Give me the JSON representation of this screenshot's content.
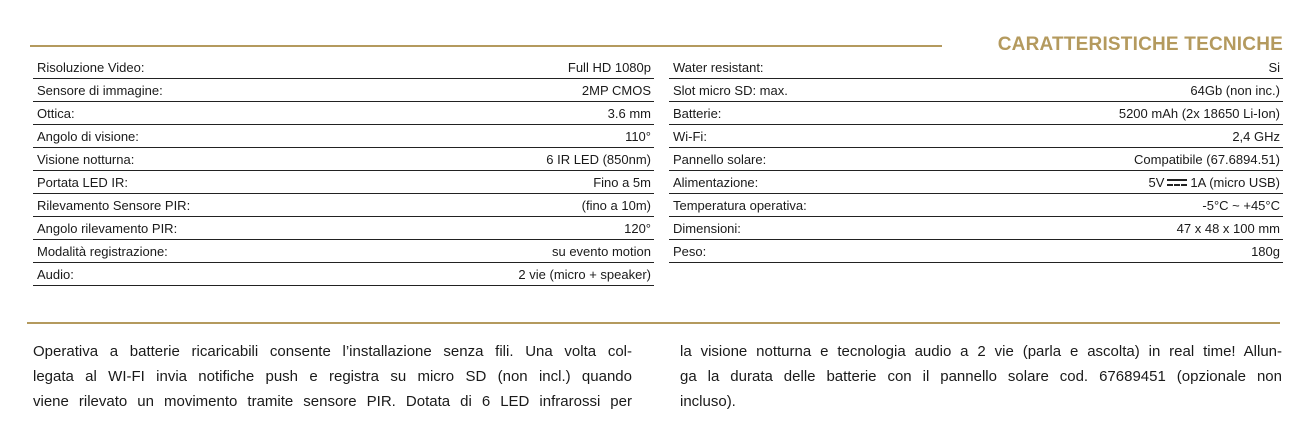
{
  "title": "CARATTERISTICHE TECNICHE",
  "accent_color": "#b49a5e",
  "left_specs": [
    {
      "label": "Risoluzione Video:",
      "value": "Full HD 1080p"
    },
    {
      "label": "Sensore di immagine:",
      "value": "2MP CMOS"
    },
    {
      "label": "Ottica:",
      "value": "3.6 mm"
    },
    {
      "label": "Angolo di visione:",
      "value": "110°"
    },
    {
      "label": "Visione notturna:",
      "value": "6 IR LED (850nm)"
    },
    {
      "label": "Portata LED IR:",
      "value": "Fino a 5m"
    },
    {
      "label": "Rilevamento Sensore PIR:",
      "value": "(fino a 10m)"
    },
    {
      "label": "Angolo rilevamento PIR:",
      "value": "120°"
    },
    {
      "label": "Modalità registrazione:",
      "value": "su evento motion"
    },
    {
      "label": "Audio:",
      "value": "2 vie (micro + speaker)"
    }
  ],
  "right_specs": [
    {
      "label": "Water resistant:",
      "value": "Si"
    },
    {
      "label": "Slot micro SD: max.",
      "value": "64Gb (non inc.)"
    },
    {
      "label": "Batterie:",
      "value": "5200 mAh (2x 18650 Li-Ion)"
    },
    {
      "label": "Wi-Fi:",
      "value": "2,4 GHz"
    },
    {
      "label": "Pannello solare:",
      "value": "Compatibile (67.6894.51)"
    },
    {
      "label": "Alimentazione:",
      "value": "5V",
      "value_icon": "dc-current-symbol",
      "value_suffix": "1A (micro USB)"
    },
    {
      "label": "Temperatura operativa:",
      "value": "-5°C ~ +45°C"
    },
    {
      "label": "Dimensioni:",
      "value": "47 x 48 x 100 mm"
    },
    {
      "label": "Peso:",
      "value": "180g"
    }
  ],
  "description": {
    "left_lines": [
      "Operativa a batterie ricaricabili consente l’installazione senza fili. Una volta col-",
      "legata al WI-FI invia notifiche push e registra su micro SD (non  incl.) quando",
      "viene rilevato un movimento tramite sensore PIR. Dotata di 6 LED infrarossi per"
    ],
    "right_lines": [
      "la visione notturna e tecnologia audio a 2 vie (parla e ascolta) in real time! Allun-",
      "ga la durata delle batterie con il pannello solare cod. 67689451 (opzionale non",
      "incluso)."
    ]
  }
}
